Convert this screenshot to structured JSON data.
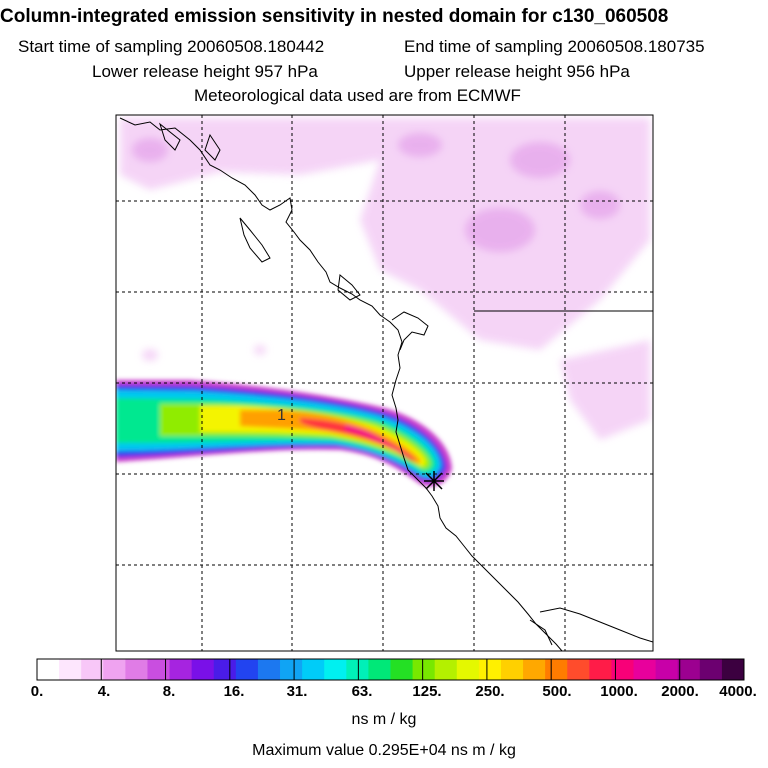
{
  "header": {
    "title": "Column-integrated emission sensitivity in nested domain for c130_060508",
    "start_label": "Start time of sampling 20060508.180442",
    "end_label": "End time of sampling 20060508.180735",
    "lower_label": "Lower release height  957 hPa",
    "upper_label": "Upper release height  956 hPa",
    "met_label": "Meteorological data used are from ECMWF"
  },
  "map": {
    "plume_marker_label": "1",
    "release_marker": "asterisk-icon",
    "colors": {
      "grid": "#000000",
      "coast": "#000000",
      "background_shading": "#f2c8f6"
    }
  },
  "colorbar": {
    "tick_labels": [
      "0.",
      "4.",
      "8.",
      "16.",
      "31.",
      "63.",
      "125.",
      "250.",
      "500.",
      "1000.",
      "2000.",
      "4000."
    ],
    "colors": [
      "#ffffff",
      "#fde6fd",
      "#f8c7f8",
      "#efa3f0",
      "#e07ce6",
      "#c94ee0",
      "#a624e0",
      "#7a10e8",
      "#4a1ce8",
      "#2244f0",
      "#1c78f0",
      "#10a4f4",
      "#00ccf8",
      "#00f0f0",
      "#00f0b8",
      "#00e878",
      "#24e024",
      "#78e800",
      "#b4f000",
      "#e4f800",
      "#fff000",
      "#ffd000",
      "#ffa800",
      "#ff7c00",
      "#ff4c2c",
      "#ff1c48",
      "#f80078",
      "#e8009c",
      "#c800a8",
      "#9c0090",
      "#6c0070",
      "#3c0040"
    ],
    "units": "ns m / kg"
  },
  "footer": {
    "max_value": "Maximum value  0.295E+04 ns m / kg"
  }
}
